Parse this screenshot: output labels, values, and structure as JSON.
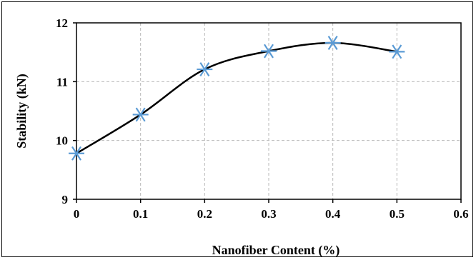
{
  "chart_data": {
    "type": "line",
    "title": "",
    "xlabel": "Nanofiber Content (%)",
    "ylabel": "Stability (kN)",
    "xlim": [
      0,
      0.6
    ],
    "ylim": [
      9,
      12
    ],
    "xticks": [
      "0",
      "0.1",
      "0.2",
      "0.3",
      "0.4",
      "0.5",
      "0.6"
    ],
    "yticks": [
      "9",
      "10",
      "11",
      "12"
    ],
    "grid": true,
    "legend": "none",
    "marker": "asterisk",
    "series": [
      {
        "x": [
          0,
          0.1,
          0.2,
          0.3,
          0.4,
          0.5
        ],
        "y": [
          9.78,
          10.44,
          11.21,
          11.52,
          11.66,
          11.51
        ],
        "line_color": "#000000",
        "marker_color": "#5b9bd5"
      }
    ]
  }
}
